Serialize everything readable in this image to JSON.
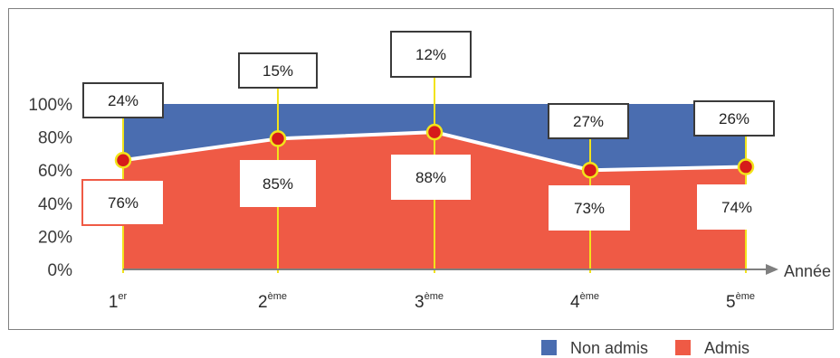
{
  "chart_data": {
    "type": "area",
    "stacked": true,
    "categories": [
      "1",
      "2",
      "3",
      "4",
      "5"
    ],
    "category_suffix": [
      "er",
      "ème",
      "ème",
      "ème",
      "ème"
    ],
    "series": [
      {
        "name": "Admis",
        "values": [
          76,
          85,
          88,
          73,
          74
        ],
        "color": "#ef5a45"
      },
      {
        "name": "Non admis",
        "values": [
          24,
          15,
          12,
          27,
          26
        ],
        "color": "#4a6db0"
      }
    ],
    "plotted_line": [
      66,
      79,
      83,
      60,
      62
    ],
    "data_labels": {
      "Admis": [
        "76%",
        "85%",
        "88%",
        "73%",
        "74%"
      ],
      "Non admis": [
        "24%",
        "15%",
        "12%",
        "27%",
        "26%"
      ]
    },
    "y_ticks": [
      "0%",
      "20%",
      "40%",
      "60%",
      "80%",
      "100%"
    ],
    "ylim": [
      0,
      100
    ],
    "xlabel": "Année",
    "ylabel": "",
    "title": "",
    "legend_position": "bottom-right",
    "grid": false,
    "colors": {
      "line": "#ffffff",
      "marker_fill": "#d61a1a",
      "marker_stroke": "#f2e31b",
      "leader": "#f2e31b",
      "label_border_top": "#3a3a3a",
      "label_border_bottom": "#ef5a45",
      "axis": "#7f7f7f"
    }
  }
}
